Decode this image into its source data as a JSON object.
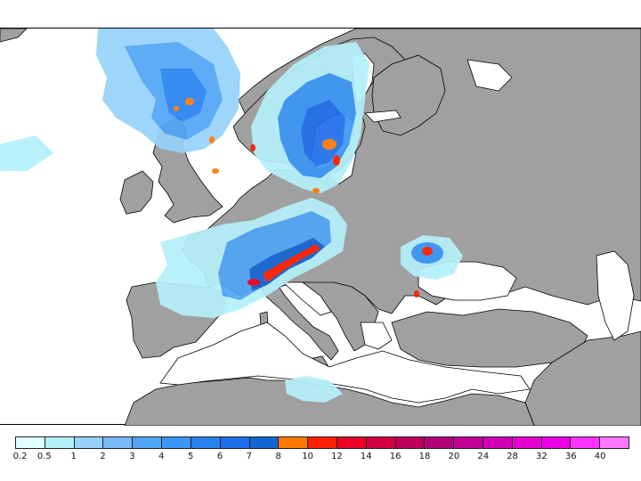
{
  "map": {
    "legend": {
      "colors": [
        "#e0ffff",
        "#b4f0fa",
        "#96d2fa",
        "#78b9fa",
        "#50a5f5",
        "#3c96f5",
        "#2882f0",
        "#1e6eeb",
        "#1464d2",
        "#ff7800",
        "#ff1e00",
        "#eb0028",
        "#d20041",
        "#be005a",
        "#b40078",
        "#c30096",
        "#d200b4",
        "#e600d2",
        "#f000e6",
        "#ff32ff",
        "#ff78ff"
      ],
      "tick_labels": [
        "0.2",
        "0.5",
        "1",
        "2",
        "3",
        "4",
        "5",
        "6",
        "7",
        "8",
        "10",
        "12",
        "14",
        "16",
        "18",
        "20",
        "24",
        "28",
        "32",
        "36",
        "40"
      ]
    },
    "colors": {
      "land": "#a0a0a0",
      "sea": "#ffffff",
      "border": "#000000"
    }
  }
}
